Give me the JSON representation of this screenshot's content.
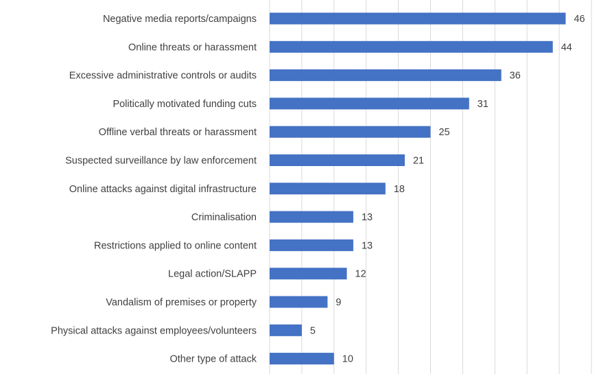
{
  "chart_data": {
    "type": "bar",
    "orientation": "horizontal",
    "categories": [
      "Negative media reports/campaigns",
      "Online threats or harassment",
      "Excessive administrative controls or audits",
      "Politically motivated funding cuts",
      "Offline verbal threats or harassment",
      "Suspected surveillance by law enforcement",
      "Online attacks against digital infrastructure",
      "Criminalisation",
      "Restrictions applied to online content",
      "Legal action/SLAPP",
      "Vandalism of premises or property",
      "Physical attacks against employees/volunteers",
      "Other type of attack"
    ],
    "values": [
      46,
      44,
      36,
      31,
      25,
      21,
      18,
      13,
      13,
      12,
      9,
      5,
      10
    ],
    "xlim": [
      0,
      50
    ],
    "grid": true,
    "data_labels": true,
    "bar_color": "#4472c4"
  }
}
